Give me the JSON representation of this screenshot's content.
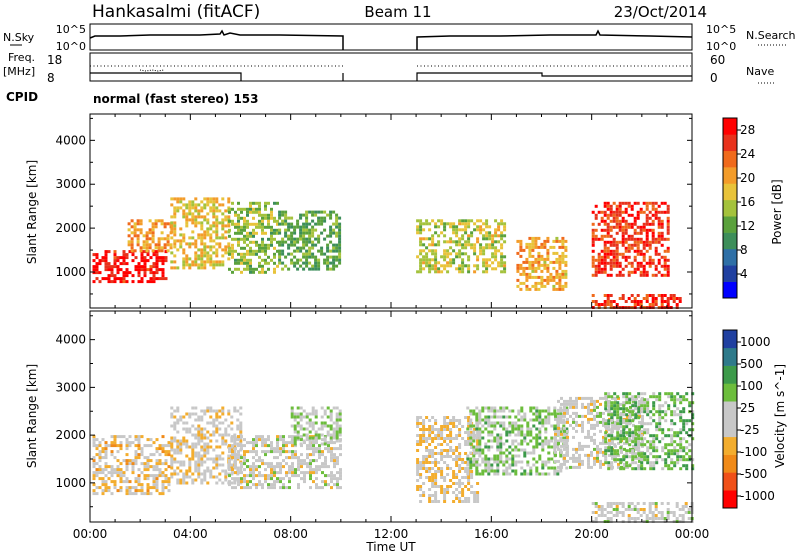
{
  "header": {
    "station": "Hankasalmi (fitACF)",
    "beam": "Beam 11",
    "date": "23/Oct/2014"
  },
  "nsky": {
    "label": "N.Sky",
    "tick_top": "10^5",
    "tick_bottom": "10^0",
    "right_tick_top": "10^5",
    "right_tick_bottom": "10^0",
    "right_label": "N.Search"
  },
  "freq": {
    "label_line1": "Freq.",
    "label_line2": "[MHz]",
    "tick_top": "18",
    "tick_bottom": "8",
    "right_tick_top": "60",
    "right_tick_bottom": "0",
    "right_label": "Nave"
  },
  "cpid": {
    "label": "CPID",
    "mode": "normal (fast stereo) 153"
  },
  "time_axis": {
    "label": "Time UT",
    "ticks": [
      "00:00",
      "04:00",
      "08:00",
      "12:00",
      "16:00",
      "20:00",
      "00:00"
    ]
  },
  "colors": {
    "power_scale": [
      "#0000ff",
      "#2040a0",
      "#2e6fa6",
      "#3d8e5a",
      "#5aa13c",
      "#a4c23c",
      "#e8c33a",
      "#f39c2a",
      "#f06a1c",
      "#e8321c",
      "#ff0000"
    ],
    "velocity_scale": [
      "#ff0000",
      "#f05018",
      "#f08a18",
      "#f3ad2e",
      "#c8c8c8",
      "#c8c8c8",
      "#6cbd3c",
      "#3c9a4a",
      "#2e7a8a",
      "#2040a0"
    ]
  },
  "chart_data": [
    {
      "type": "heatmap",
      "title": "Power",
      "ylabel": "Slant Range [km]",
      "xlabel": "",
      "x_unit": "hours UT",
      "xlim": [
        0,
        24
      ],
      "ylim": [
        180,
        4600
      ],
      "yticks": [
        "1000",
        "2000",
        "3000",
        "4000"
      ],
      "colorbar": {
        "label": "Power [dB]",
        "ticks": [
          "4",
          "8",
          "12",
          "16",
          "20",
          "24",
          "28"
        ],
        "range": [
          0,
          30
        ]
      },
      "data_gap_hours": [
        10.0,
        13.0
      ],
      "echo_regions": [
        {
          "t0": 0.1,
          "t1": 3.0,
          "r0": 800,
          "r1": 1500,
          "level": 28
        },
        {
          "t0": 1.5,
          "t1": 3.2,
          "r0": 1500,
          "r1": 2200,
          "level": 20
        },
        {
          "t0": 3.2,
          "t1": 5.5,
          "r0": 1100,
          "r1": 2700,
          "level": 18
        },
        {
          "t0": 5.5,
          "t1": 7.5,
          "r0": 1000,
          "r1": 2600,
          "level": 14
        },
        {
          "t0": 7.5,
          "t1": 10.0,
          "r0": 1100,
          "r1": 2400,
          "level": 12
        },
        {
          "t0": 13.0,
          "t1": 16.5,
          "r0": 1000,
          "r1": 2200,
          "level": 16
        },
        {
          "t0": 17.0,
          "t1": 19.0,
          "r0": 600,
          "r1": 1800,
          "level": 20
        },
        {
          "t0": 20.0,
          "t1": 23.0,
          "r0": 900,
          "r1": 2600,
          "level": 26
        },
        {
          "t0": 20.0,
          "t1": 23.5,
          "r0": 200,
          "r1": 500,
          "level": 26
        }
      ]
    },
    {
      "type": "heatmap",
      "title": "Velocity",
      "ylabel": "Slant Range [km]",
      "xlabel": "Time UT",
      "x_unit": "hours UT",
      "xlim": [
        0,
        24
      ],
      "ylim": [
        180,
        4600
      ],
      "yticks": [
        "1000",
        "2000",
        "3000",
        "4000"
      ],
      "colorbar": {
        "label": "Velocity [m s^-1]",
        "ticks": [
          "1000",
          "500",
          "100",
          "25",
          "-25",
          "-100",
          "-500",
          "-1000"
        ],
        "range": [
          -1000,
          1000
        ]
      },
      "data_gap_hours": [
        10.0,
        13.0
      ],
      "echo_regions": [
        {
          "t0": 0.1,
          "t1": 3.2,
          "r0": 800,
          "r1": 2000,
          "level": -200
        },
        {
          "t0": 3.2,
          "t1": 6.0,
          "r0": 1000,
          "r1": 2600,
          "level": -100
        },
        {
          "t0": 5.5,
          "t1": 10.0,
          "r0": 900,
          "r1": 2000,
          "level": 0
        },
        {
          "t0": 8.0,
          "t1": 10.0,
          "r0": 1800,
          "r1": 2600,
          "level": 150
        },
        {
          "t0": 13.0,
          "t1": 15.5,
          "r0": 600,
          "r1": 2400,
          "level": -150
        },
        {
          "t0": 15.0,
          "t1": 19.0,
          "r0": 1200,
          "r1": 2600,
          "level": 200
        },
        {
          "t0": 18.5,
          "t1": 22.0,
          "r0": 1300,
          "r1": 2800,
          "level": 0
        },
        {
          "t0": 20.5,
          "t1": 24.0,
          "r0": 1300,
          "r1": 2900,
          "level": 300
        },
        {
          "t0": 20.0,
          "t1": 24.0,
          "r0": 200,
          "r1": 600,
          "level": 0
        }
      ]
    }
  ]
}
